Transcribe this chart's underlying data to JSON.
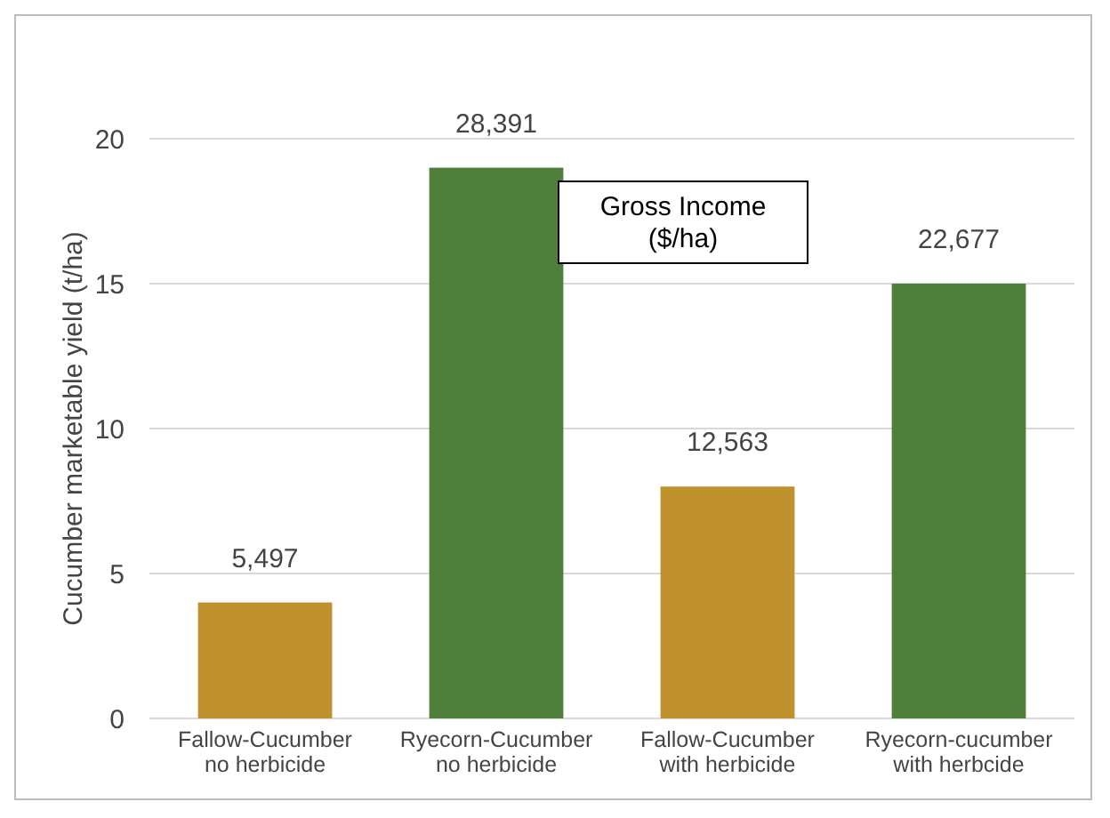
{
  "chart_data": {
    "type": "bar",
    "ylabel": "Cucumber marketable yield (t/ha)",
    "categories": [
      "Fallow-Cucumber no herbicide",
      "Ryecorn-Cucumber no herbicide",
      "Fallow-Cucumber with herbicide",
      "Ryecorn-cucumber with herbcide"
    ],
    "values": [
      4,
      19,
      8,
      15
    ],
    "colors": [
      "#c0922e",
      "#4f7f3a",
      "#c0922e",
      "#4f7f3a"
    ],
    "annotations": [
      "Gross Income ($/ha)",
      {
        "text": "5,497",
        "x": "Fallow-Cucumber no herbicide",
        "y": 4
      },
      {
        "text": "28,391",
        "x": "Ryecorn-Cucumber no herbicide",
        "y": 19
      },
      {
        "text": "12,563",
        "x": "Fallow-Cucumber with herbicide",
        "y": 8
      },
      {
        "text": "22,677",
        "x": "Ryecorn-cucumber with herbcide",
        "y": 15
      }
    ],
    "ylim": [
      0,
      20
    ],
    "yticks": [
      0,
      5,
      10,
      15,
      20
    ],
    "grid": "y"
  }
}
